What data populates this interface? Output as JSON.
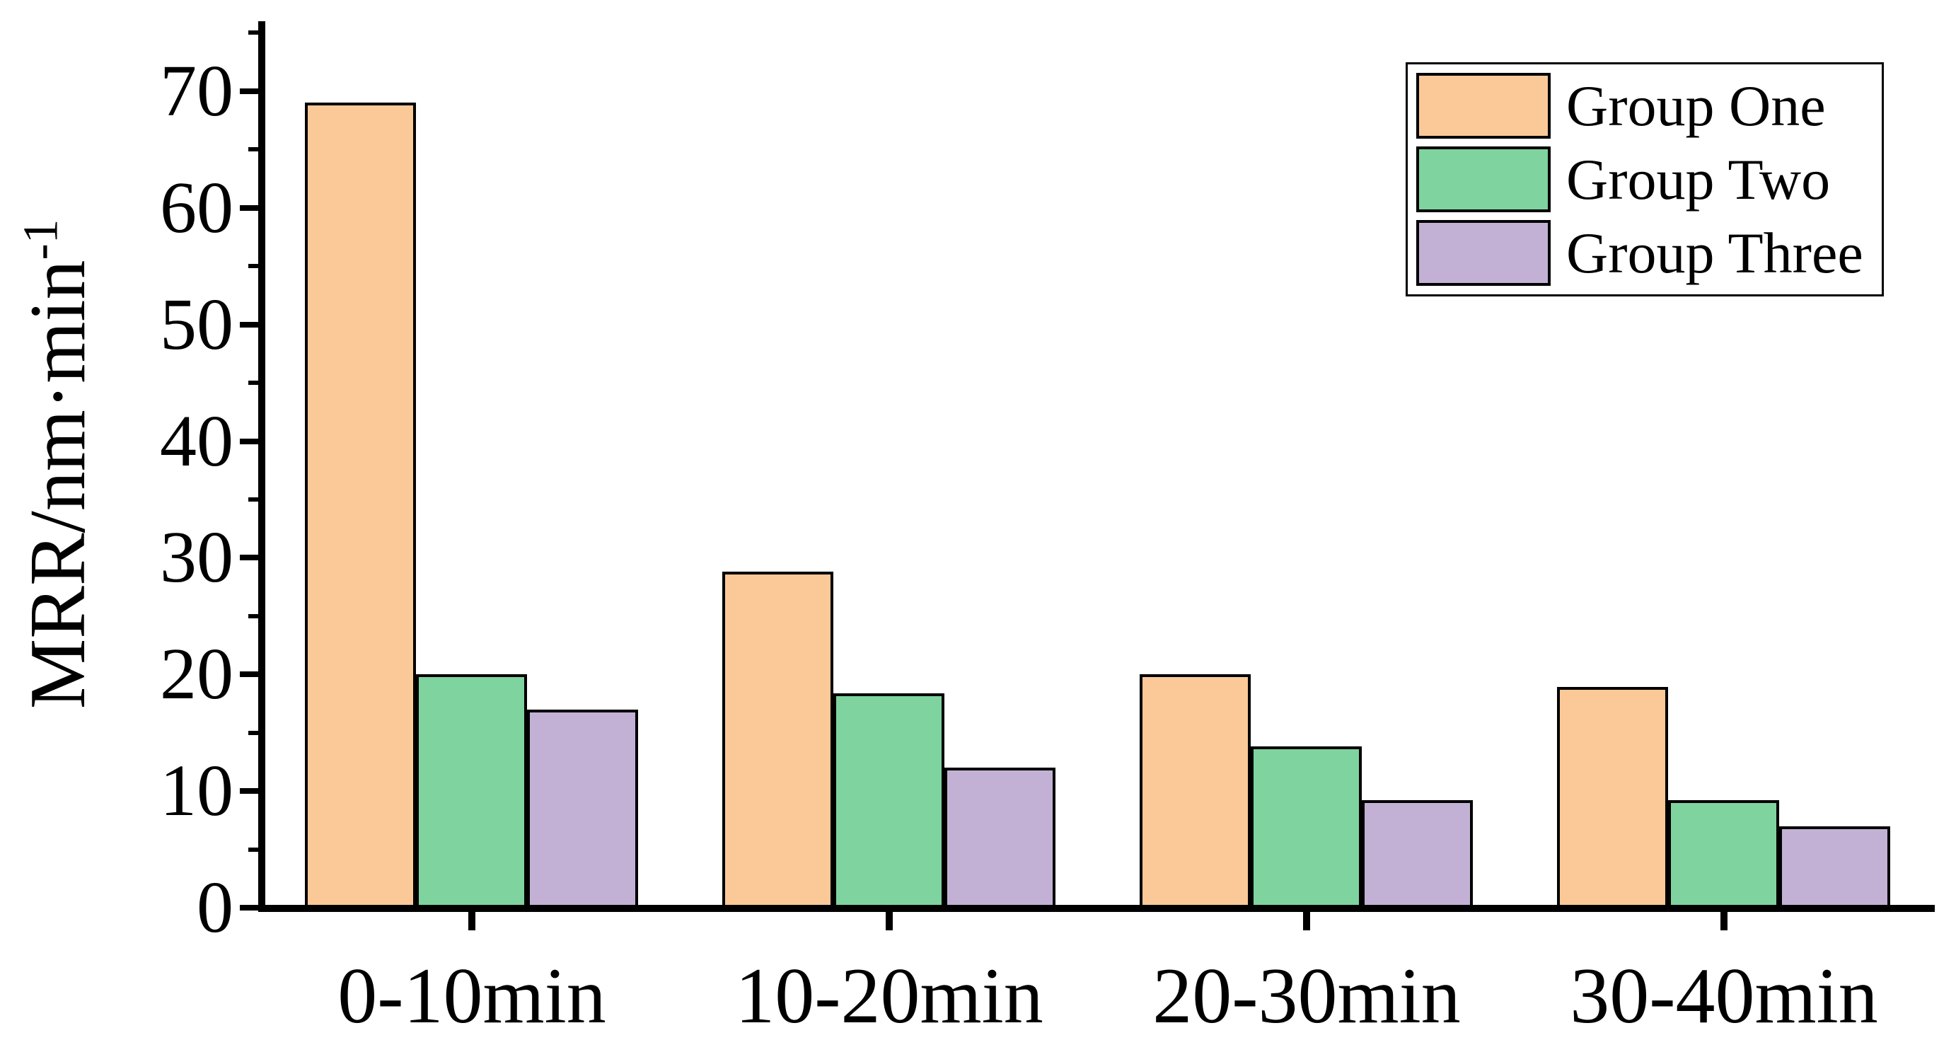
{
  "chart_data": {
    "type": "bar",
    "title": "",
    "categories": [
      "0-10min",
      "10-20min",
      "20-30min",
      "30-40min"
    ],
    "series": [
      {
        "name": "Group One",
        "color": "#FBC998",
        "values": [
          69,
          28.8,
          20,
          18.9
        ]
      },
      {
        "name": "Group Two",
        "color": "#7FD39E",
        "values": [
          20,
          18.4,
          13.8,
          9.2
        ]
      },
      {
        "name": "Group Three",
        "color": "#C3B1D5",
        "values": [
          17,
          12,
          9.2,
          7
        ]
      }
    ],
    "ylabel_main": "MRR/nm·min",
    "ylabel_sup": "-1",
    "xlabel": "",
    "y_ticks": [
      0,
      10,
      20,
      30,
      40,
      50,
      60,
      70
    ],
    "y_minor_ticks": [
      5,
      15,
      25,
      35,
      45,
      55,
      65,
      75
    ],
    "ylim": [
      0,
      76
    ],
    "grid": false,
    "legend_position": "top-right",
    "bar_edge_color": "#000000",
    "axis_color": "#000000"
  }
}
